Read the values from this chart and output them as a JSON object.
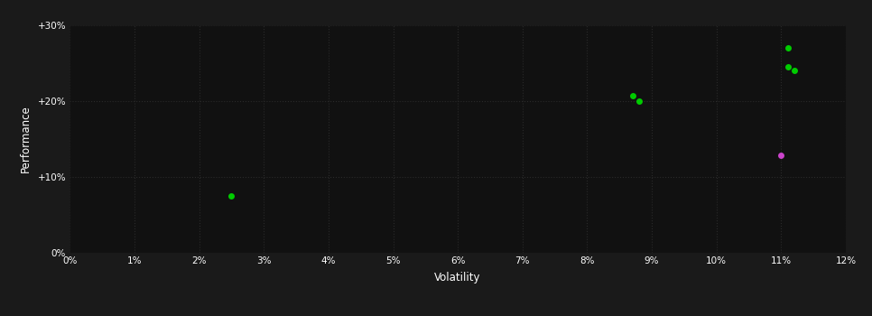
{
  "background_color": "#1a1a1a",
  "plot_bg_color": "#111111",
  "grid_color": "#2a2a2a",
  "text_color": "#ffffff",
  "xlabel": "Volatility",
  "ylabel": "Performance",
  "xlim": [
    0,
    0.12
  ],
  "ylim": [
    0,
    0.3
  ],
  "xticks": [
    0.0,
    0.01,
    0.02,
    0.03,
    0.04,
    0.05,
    0.06,
    0.07,
    0.08,
    0.09,
    0.1,
    0.11,
    0.12
  ],
  "yticks": [
    0.0,
    0.1,
    0.2,
    0.3
  ],
  "ytick_labels": [
    "0%",
    "+10%",
    "+20%",
    "+30%"
  ],
  "xtick_labels": [
    "0%",
    "1%",
    "2%",
    "3%",
    "4%",
    "5%",
    "6%",
    "7%",
    "8%",
    "9%",
    "10%",
    "11%",
    "12%"
  ],
  "green_points": [
    [
      0.025,
      0.075
    ],
    [
      0.087,
      0.207
    ],
    [
      0.088,
      0.2
    ],
    [
      0.111,
      0.27
    ],
    [
      0.111,
      0.245
    ],
    [
      0.112,
      0.241
    ]
  ],
  "magenta_points": [
    [
      0.11,
      0.128
    ]
  ],
  "green_color": "#00cc00",
  "magenta_color": "#cc44cc",
  "marker_size": 5,
  "figsize": [
    9.66,
    3.5
  ],
  "dpi": 100
}
